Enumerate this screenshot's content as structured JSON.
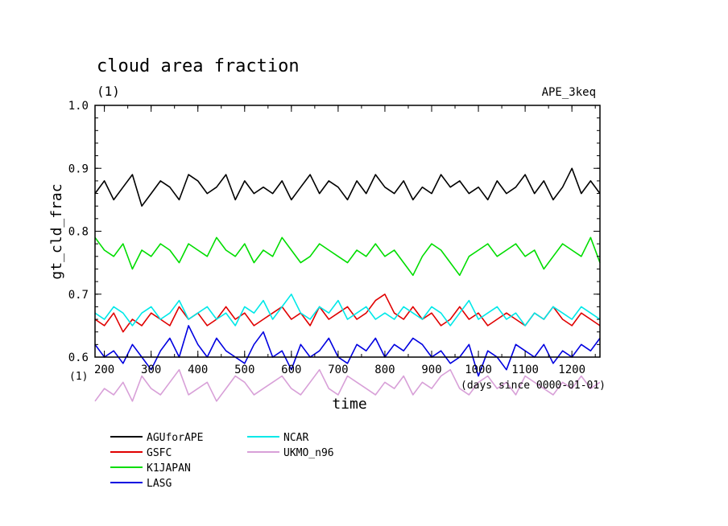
{
  "chart_data": {
    "type": "line",
    "title": "cloud area fraction",
    "subtitle": "(1)",
    "experiment": "APE_3keq",
    "xlabel": "time",
    "x_unit": "(days since 0000-01-01)",
    "ylabel": "gt_cld_frac",
    "y_unit": "(1)",
    "xlim": [
      180,
      1260
    ],
    "ylim": [
      0.6,
      1.0
    ],
    "x_ticks": [
      "200",
      "300",
      "400",
      "500",
      "600",
      "700",
      "800",
      "900",
      "1000",
      "1100",
      "1200"
    ],
    "y_ticks": [
      "0.6",
      "0.7",
      "0.8",
      "0.9",
      "1.0"
    ],
    "grid": false,
    "legend_position": "bottom-left",
    "x": [
      180,
      200,
      220,
      240,
      260,
      280,
      300,
      320,
      340,
      360,
      380,
      400,
      420,
      440,
      460,
      480,
      500,
      520,
      540,
      560,
      580,
      600,
      620,
      640,
      660,
      680,
      700,
      720,
      740,
      760,
      780,
      800,
      820,
      840,
      860,
      880,
      900,
      920,
      940,
      960,
      980,
      1000,
      1020,
      1040,
      1060,
      1080,
      1100,
      1120,
      1140,
      1160,
      1180,
      1200,
      1220,
      1240,
      1260
    ],
    "series": [
      {
        "name": "AGUforAPE",
        "color": "#000000",
        "values": [
          0.86,
          0.88,
          0.85,
          0.87,
          0.89,
          0.84,
          0.86,
          0.88,
          0.87,
          0.85,
          0.89,
          0.88,
          0.86,
          0.87,
          0.89,
          0.85,
          0.88,
          0.86,
          0.87,
          0.86,
          0.88,
          0.85,
          0.87,
          0.89,
          0.86,
          0.88,
          0.87,
          0.85,
          0.88,
          0.86,
          0.89,
          0.87,
          0.86,
          0.88,
          0.85,
          0.87,
          0.86,
          0.89,
          0.87,
          0.88,
          0.86,
          0.87,
          0.85,
          0.88,
          0.86,
          0.87,
          0.89,
          0.86,
          0.88,
          0.85,
          0.87,
          0.9,
          0.86,
          0.88,
          0.86
        ]
      },
      {
        "name": "GSFC",
        "color": "#e00000",
        "values": [
          0.66,
          0.65,
          0.67,
          0.64,
          0.66,
          0.65,
          0.67,
          0.66,
          0.65,
          0.68,
          0.66,
          0.67,
          0.65,
          0.66,
          0.68,
          0.66,
          0.67,
          0.65,
          0.66,
          0.67,
          0.68,
          0.66,
          0.67,
          0.65,
          0.68,
          0.66,
          0.67,
          0.68,
          0.66,
          0.67,
          0.69,
          0.7,
          0.67,
          0.66,
          0.68,
          0.66,
          0.67,
          0.65,
          0.66,
          0.68,
          0.66,
          0.67,
          0.65,
          0.66,
          0.67,
          0.66,
          0.65,
          0.67,
          0.66,
          0.68,
          0.66,
          0.65,
          0.67,
          0.66,
          0.65
        ]
      },
      {
        "name": "K1JAPAN",
        "color": "#00dd00",
        "values": [
          0.79,
          0.77,
          0.76,
          0.78,
          0.74,
          0.77,
          0.76,
          0.78,
          0.77,
          0.75,
          0.78,
          0.77,
          0.76,
          0.79,
          0.77,
          0.76,
          0.78,
          0.75,
          0.77,
          0.76,
          0.79,
          0.77,
          0.75,
          0.76,
          0.78,
          0.77,
          0.76,
          0.75,
          0.77,
          0.76,
          0.78,
          0.76,
          0.77,
          0.75,
          0.73,
          0.76,
          0.78,
          0.77,
          0.75,
          0.73,
          0.76,
          0.77,
          0.78,
          0.76,
          0.77,
          0.78,
          0.76,
          0.77,
          0.74,
          0.76,
          0.78,
          0.77,
          0.76,
          0.79,
          0.75
        ]
      },
      {
        "name": "LASG",
        "color": "#0000e0",
        "values": [
          0.62,
          0.6,
          0.61,
          0.59,
          0.62,
          0.6,
          0.58,
          0.61,
          0.63,
          0.6,
          0.65,
          0.62,
          0.6,
          0.63,
          0.61,
          0.6,
          0.59,
          0.62,
          0.64,
          0.6,
          0.61,
          0.58,
          0.62,
          0.6,
          0.61,
          0.63,
          0.6,
          0.59,
          0.62,
          0.61,
          0.63,
          0.6,
          0.62,
          0.61,
          0.63,
          0.62,
          0.6,
          0.61,
          0.59,
          0.6,
          0.62,
          0.57,
          0.61,
          0.6,
          0.58,
          0.62,
          0.61,
          0.6,
          0.62,
          0.59,
          0.61,
          0.6,
          0.62,
          0.61,
          0.63
        ]
      },
      {
        "name": "NCAR",
        "color": "#00e8e8",
        "values": [
          0.67,
          0.66,
          0.68,
          0.67,
          0.65,
          0.67,
          0.68,
          0.66,
          0.67,
          0.69,
          0.66,
          0.67,
          0.68,
          0.66,
          0.67,
          0.65,
          0.68,
          0.67,
          0.69,
          0.66,
          0.68,
          0.7,
          0.67,
          0.66,
          0.68,
          0.67,
          0.69,
          0.66,
          0.67,
          0.68,
          0.66,
          0.67,
          0.66,
          0.68,
          0.67,
          0.66,
          0.68,
          0.67,
          0.65,
          0.67,
          0.69,
          0.66,
          0.67,
          0.68,
          0.66,
          0.67,
          0.65,
          0.67,
          0.66,
          0.68,
          0.67,
          0.66,
          0.68,
          0.67,
          0.66
        ]
      },
      {
        "name": "UKMO_n96",
        "color": "#d8a0d8",
        "values": [
          0.53,
          0.55,
          0.54,
          0.56,
          0.53,
          0.57,
          0.55,
          0.54,
          0.56,
          0.58,
          0.54,
          0.55,
          0.56,
          0.53,
          0.55,
          0.57,
          0.56,
          0.54,
          0.55,
          0.56,
          0.57,
          0.55,
          0.54,
          0.56,
          0.58,
          0.55,
          0.54,
          0.57,
          0.56,
          0.55,
          0.54,
          0.56,
          0.55,
          0.57,
          0.54,
          0.56,
          0.55,
          0.57,
          0.58,
          0.55,
          0.54,
          0.56,
          0.57,
          0.55,
          0.56,
          0.54,
          0.57,
          0.56,
          0.55,
          0.54,
          0.56,
          0.55,
          0.57,
          0.55,
          0.56
        ]
      }
    ]
  }
}
